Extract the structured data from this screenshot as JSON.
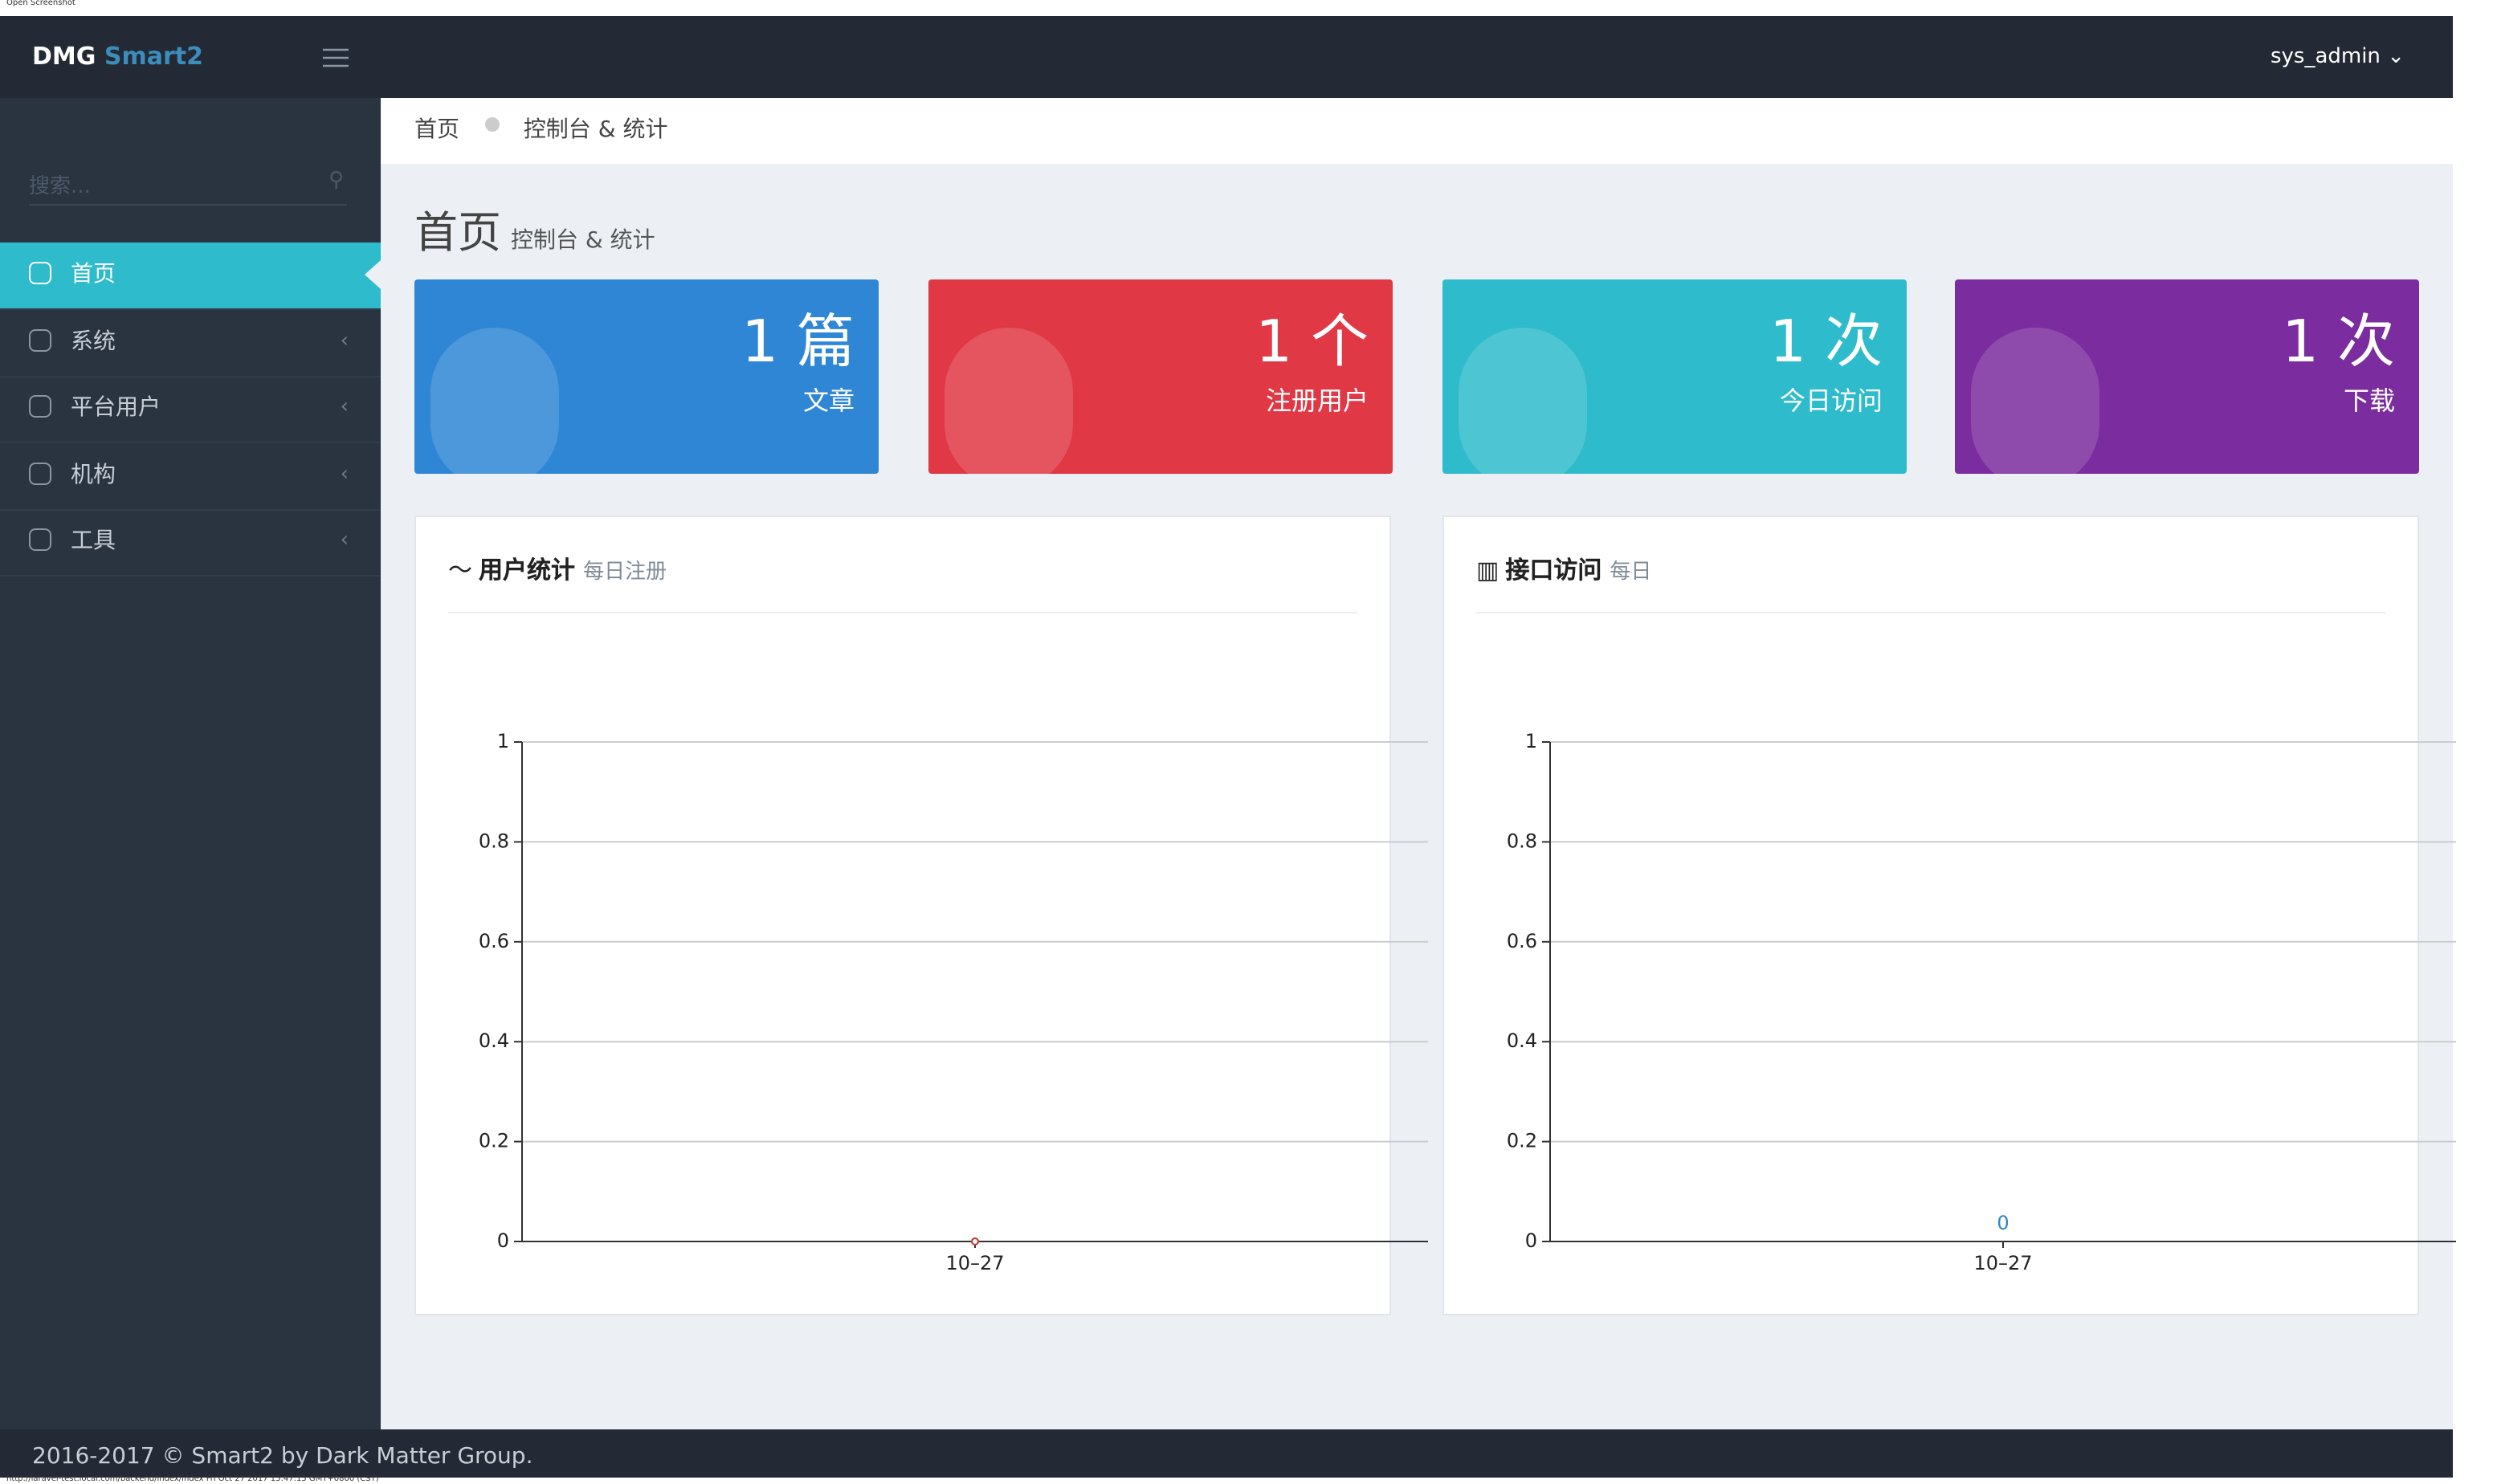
{
  "top_caption": "Open Screenshot",
  "header": {
    "brand": "DMG",
    "brand_accent": "Smart2",
    "user": "sys_admin"
  },
  "sidebar": {
    "search_placeholder": "搜索...",
    "menu": [
      "首页",
      "系统",
      "平台用户",
      "机构",
      "工具"
    ]
  },
  "breadcrumb": [
    "首页",
    "控制台 & 统计"
  ],
  "page": {
    "title": "首页",
    "subtitle": "控制台 & 统计"
  },
  "stats": [
    {
      "value": 1,
      "unit": "篇",
      "label": "文章",
      "color": "#2e86d5"
    },
    {
      "value": 1,
      "unit": "个",
      "label": "注册用户",
      "color": "#e03845"
    },
    {
      "value": 1,
      "unit": "次",
      "label": "今日访问",
      "color": "#2ebbcc"
    },
    {
      "value": 1,
      "unit": "次",
      "label": "下载",
      "color": "#7b2c9e"
    }
  ],
  "chart_data": [
    {
      "type": "line",
      "title": "用户统计",
      "subtitle": "每日注册",
      "categories": [
        "10–27"
      ],
      "values": [
        0
      ],
      "color": "#c23531",
      "ylim": [
        0,
        1
      ],
      "yticks": [
        0,
        0.2,
        0.4,
        0.6,
        0.8,
        1
      ],
      "grid": true
    },
    {
      "type": "bar",
      "title": "接口访问",
      "subtitle": "每日",
      "categories": [
        "10–27"
      ],
      "values": [
        0
      ],
      "color": "#2f87c8",
      "ylim": [
        0,
        1
      ],
      "yticks": [
        0,
        0.2,
        0.4,
        0.6,
        0.8,
        1
      ],
      "grid": true
    }
  ],
  "footer": "2016-2017 © Smart2 by Dark Matter Group.",
  "status_bar": "http://laravel-test.local.com/backend/index/index Fri Oct 27 2017 15:47:15 GMT+0800 (CST)"
}
